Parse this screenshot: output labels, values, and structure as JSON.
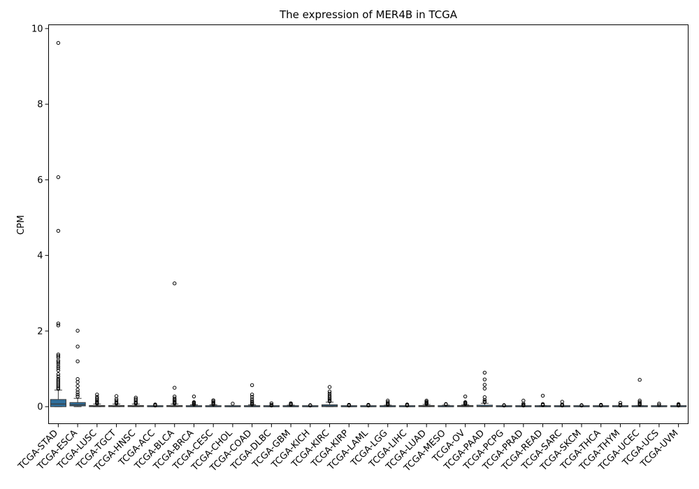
{
  "chart_data": {
    "type": "box",
    "title": "The expression of MER4B in TCGA",
    "xlabel": "",
    "ylabel": "CPM",
    "ylim": [
      -0.45,
      10.1
    ],
    "yticks": [
      0,
      2,
      4,
      6,
      8,
      10
    ],
    "grid": false,
    "legend": "none",
    "box_color": "#2f6e9b",
    "categories": [
      "TCGA-STAD",
      "TCGA-ESCA",
      "TCGA-LUSC",
      "TCGA-TGCT",
      "TCGA-HNSC",
      "TCGA-ACC",
      "TCGA-BLCA",
      "TCGA-BRCA",
      "TCGA-CESC",
      "TCGA-CHOL",
      "TCGA-COAD",
      "TCGA-DLBC",
      "TCGA-GBM",
      "TCGA-KICH",
      "TCGA-KIRC",
      "TCGA-KIRP",
      "TCGA-LAML",
      "TCGA-LGG",
      "TCGA-LIHC",
      "TCGA-LUAD",
      "TCGA-MESO",
      "TCGA-OV",
      "TCGA-PAAD",
      "TCGA-PCPG",
      "TCGA-PRAD",
      "TCGA-READ",
      "TCGA-SARC",
      "TCGA-SKCM",
      "TCGA-THCA",
      "TCGA-THYM",
      "TCGA-UCEC",
      "TCGA-UCS",
      "TCGA-UVM"
    ],
    "boxes": [
      {
        "q1": 0.0,
        "median": 0.07,
        "q3": 0.19,
        "whisker_low": 0.0,
        "whisker_high": 0.44,
        "outliers": [
          9.62,
          6.07,
          4.65,
          2.2,
          2.15,
          1.38,
          1.34,
          1.3,
          1.22,
          1.18,
          1.13,
          1.07,
          1.02,
          0.96,
          0.86,
          0.8,
          0.74,
          0.7,
          0.66,
          0.62,
          0.58,
          0.54,
          0.5,
          0.47
        ]
      },
      {
        "q1": 0.02,
        "median": 0.05,
        "q3": 0.11,
        "whisker_low": 0.0,
        "whisker_high": 0.22,
        "outliers": [
          2.01,
          1.59,
          1.2,
          0.73,
          0.65,
          0.55,
          0.45,
          0.38,
          0.32,
          0.27
        ]
      },
      {
        "q1": 0.0,
        "median": 0.01,
        "q3": 0.03,
        "whisker_low": 0.0,
        "whisker_high": 0.07,
        "outliers": [
          0.32,
          0.26,
          0.22,
          0.18,
          0.15,
          0.12,
          0.1,
          0.08
        ]
      },
      {
        "q1": 0.0,
        "median": 0.01,
        "q3": 0.03,
        "whisker_low": 0.0,
        "whisker_high": 0.07,
        "outliers": [
          0.28,
          0.2,
          0.16,
          0.12,
          0.1,
          0.08
        ]
      },
      {
        "q1": 0.0,
        "median": 0.01,
        "q3": 0.03,
        "whisker_low": 0.0,
        "whisker_high": 0.07,
        "outliers": [
          0.24,
          0.2,
          0.16,
          0.12,
          0.1,
          0.08
        ]
      },
      {
        "q1": 0.0,
        "median": 0.0,
        "q3": 0.01,
        "whisker_low": 0.0,
        "whisker_high": 0.02,
        "outliers": [
          0.06,
          0.04,
          0.03
        ]
      },
      {
        "q1": 0.0,
        "median": 0.01,
        "q3": 0.03,
        "whisker_low": 0.0,
        "whisker_high": 0.07,
        "outliers": [
          3.26,
          0.5,
          0.27,
          0.22,
          0.18,
          0.15,
          0.12,
          0.1,
          0.08
        ]
      },
      {
        "q1": 0.0,
        "median": 0.0,
        "q3": 0.02,
        "whisker_low": 0.0,
        "whisker_high": 0.05,
        "outliers": [
          0.27,
          0.12,
          0.1,
          0.08,
          0.06
        ]
      },
      {
        "q1": 0.0,
        "median": 0.0,
        "q3": 0.02,
        "whisker_low": 0.0,
        "whisker_high": 0.05,
        "outliers": [
          0.17,
          0.14,
          0.11,
          0.08,
          0.06
        ]
      },
      {
        "q1": 0.0,
        "median": 0.0,
        "q3": 0.01,
        "whisker_low": 0.0,
        "whisker_high": 0.02,
        "outliers": [
          0.08
        ]
      },
      {
        "q1": 0.0,
        "median": 0.0,
        "q3": 0.02,
        "whisker_low": 0.0,
        "whisker_high": 0.05,
        "outliers": [
          0.57,
          0.32,
          0.26,
          0.2,
          0.15,
          0.11,
          0.08,
          0.06
        ]
      },
      {
        "q1": 0.0,
        "median": 0.0,
        "q3": 0.01,
        "whisker_low": 0.0,
        "whisker_high": 0.02,
        "outliers": [
          0.09,
          0.05,
          0.03
        ]
      },
      {
        "q1": 0.0,
        "median": 0.0,
        "q3": 0.02,
        "whisker_low": 0.0,
        "whisker_high": 0.04,
        "outliers": [
          0.09,
          0.07,
          0.05
        ]
      },
      {
        "q1": 0.0,
        "median": 0.0,
        "q3": 0.01,
        "whisker_low": 0.0,
        "whisker_high": 0.02,
        "outliers": [
          0.04,
          0.03
        ]
      },
      {
        "q1": 0.0,
        "median": 0.02,
        "q3": 0.05,
        "whisker_low": 0.0,
        "whisker_high": 0.12,
        "outliers": [
          0.52,
          0.4,
          0.35,
          0.3,
          0.26,
          0.22,
          0.19,
          0.16,
          0.14
        ]
      },
      {
        "q1": 0.0,
        "median": 0.0,
        "q3": 0.01,
        "whisker_low": 0.0,
        "whisker_high": 0.02,
        "outliers": [
          0.05,
          0.04,
          0.03
        ]
      },
      {
        "q1": 0.0,
        "median": 0.0,
        "q3": 0.01,
        "whisker_low": 0.0,
        "whisker_high": 0.02,
        "outliers": [
          0.05,
          0.04,
          0.03
        ]
      },
      {
        "q1": 0.0,
        "median": 0.0,
        "q3": 0.02,
        "whisker_low": 0.0,
        "whisker_high": 0.04,
        "outliers": [
          0.16,
          0.12,
          0.09,
          0.07,
          0.05
        ]
      },
      {
        "q1": 0.0,
        "median": 0.0,
        "q3": 0.01,
        "whisker_low": 0.0,
        "whisker_high": 0.02,
        "outliers": [
          0.06,
          0.05,
          0.04,
          0.03
        ]
      },
      {
        "q1": 0.0,
        "median": 0.01,
        "q3": 0.03,
        "whisker_low": 0.0,
        "whisker_high": 0.06,
        "outliers": [
          0.16,
          0.13,
          0.11,
          0.09,
          0.07
        ]
      },
      {
        "q1": 0.0,
        "median": 0.0,
        "q3": 0.02,
        "whisker_low": 0.0,
        "whisker_high": 0.04,
        "outliers": [
          0.07,
          0.06
        ]
      },
      {
        "q1": 0.0,
        "median": 0.01,
        "q3": 0.03,
        "whisker_low": 0.0,
        "whisker_high": 0.05,
        "outliers": [
          0.27,
          0.12,
          0.1,
          0.08,
          0.07
        ]
      },
      {
        "q1": 0.0,
        "median": 0.01,
        "q3": 0.04,
        "whisker_low": 0.0,
        "whisker_high": 0.09,
        "outliers": [
          0.9,
          0.72,
          0.58,
          0.48,
          0.25,
          0.18,
          0.14,
          0.12
        ]
      },
      {
        "q1": 0.0,
        "median": 0.0,
        "q3": 0.01,
        "whisker_low": 0.0,
        "whisker_high": 0.02,
        "outliers": [
          0.04,
          0.03
        ]
      },
      {
        "q1": 0.0,
        "median": 0.0,
        "q3": 0.01,
        "whisker_low": 0.0,
        "whisker_high": 0.02,
        "outliers": [
          0.16,
          0.08,
          0.05,
          0.04,
          0.03
        ]
      },
      {
        "q1": 0.0,
        "median": 0.0,
        "q3": 0.02,
        "whisker_low": 0.0,
        "whisker_high": 0.03,
        "outliers": [
          0.29,
          0.07,
          0.05,
          0.04
        ]
      },
      {
        "q1": 0.0,
        "median": 0.0,
        "q3": 0.01,
        "whisker_low": 0.0,
        "whisker_high": 0.02,
        "outliers": [
          0.13,
          0.06,
          0.04,
          0.03
        ]
      },
      {
        "q1": 0.0,
        "median": 0.0,
        "q3": 0.01,
        "whisker_low": 0.0,
        "whisker_high": 0.02,
        "outliers": [
          0.04,
          0.03
        ]
      },
      {
        "q1": 0.0,
        "median": 0.0,
        "q3": 0.01,
        "whisker_low": 0.0,
        "whisker_high": 0.02,
        "outliers": [
          0.05,
          0.04,
          0.03
        ]
      },
      {
        "q1": 0.0,
        "median": 0.0,
        "q3": 0.01,
        "whisker_low": 0.0,
        "whisker_high": 0.02,
        "outliers": [
          0.1,
          0.05,
          0.03
        ]
      },
      {
        "q1": 0.0,
        "median": 0.0,
        "q3": 0.01,
        "whisker_low": 0.0,
        "whisker_high": 0.03,
        "outliers": [
          0.71,
          0.16,
          0.12,
          0.09,
          0.07,
          0.05
        ]
      },
      {
        "q1": 0.0,
        "median": 0.0,
        "q3": 0.01,
        "whisker_low": 0.0,
        "whisker_high": 0.02,
        "outliers": [
          0.08,
          0.04
        ]
      },
      {
        "q1": 0.0,
        "median": 0.0,
        "q3": 0.01,
        "whisker_low": 0.0,
        "whisker_high": 0.02,
        "outliers": [
          0.07,
          0.05,
          0.04,
          0.03
        ]
      }
    ]
  }
}
